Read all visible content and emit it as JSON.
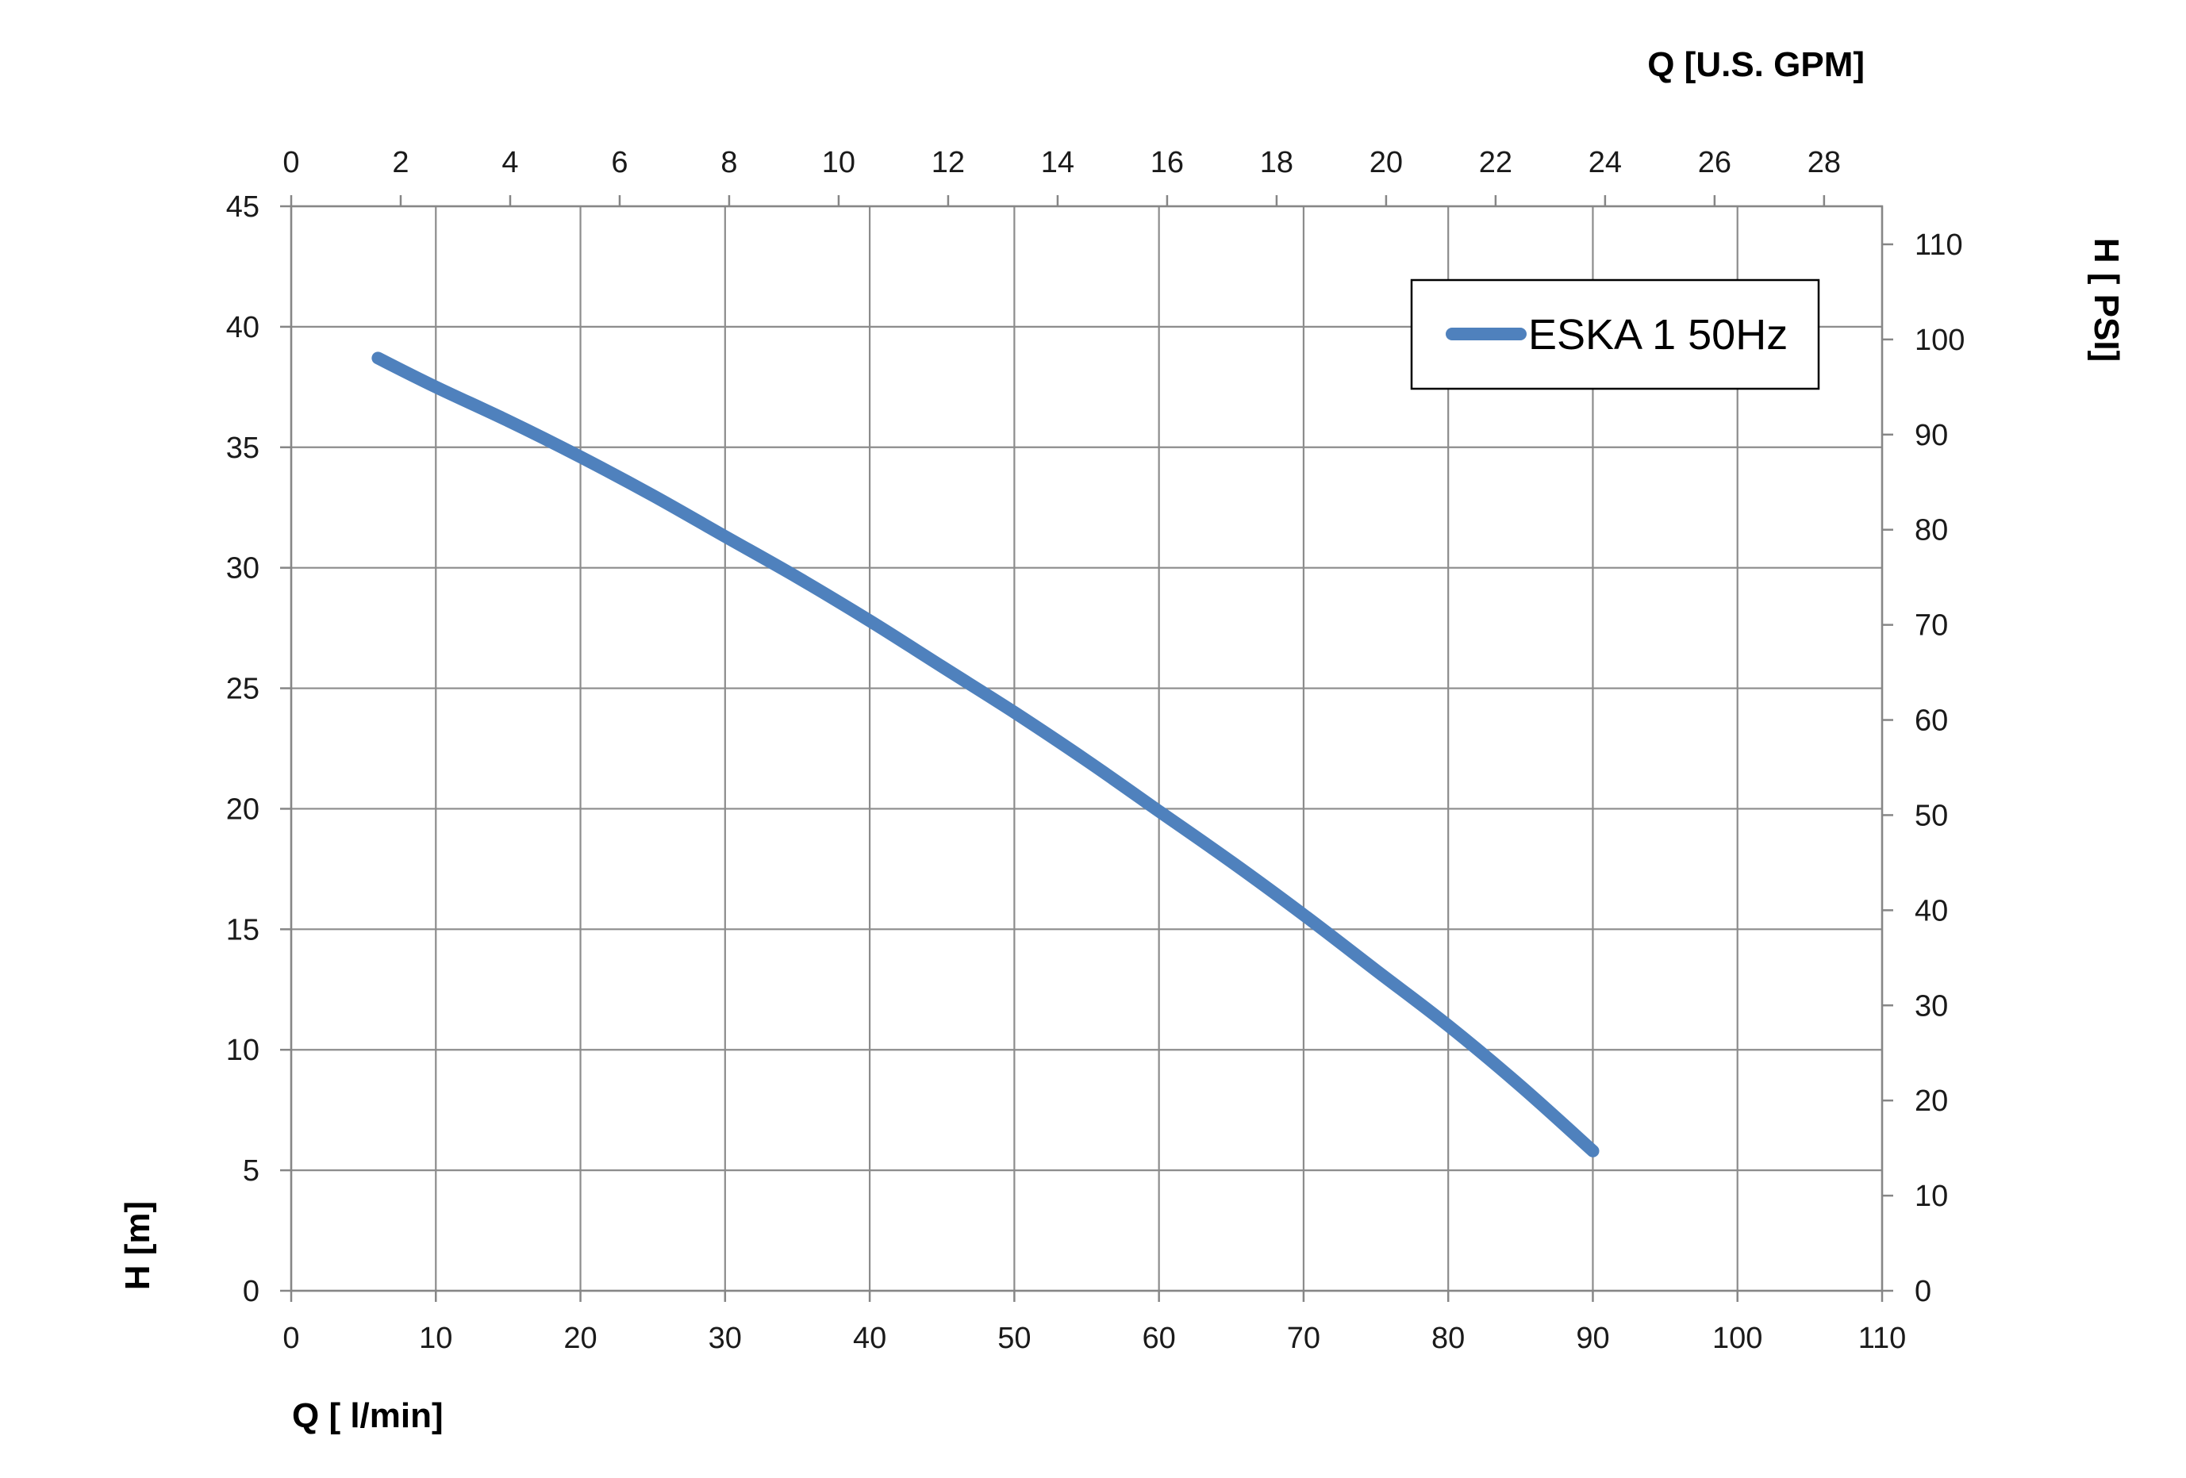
{
  "chart_data": {
    "type": "line",
    "x_axis_bottom": {
      "label": "Q [ l/min]",
      "range": [
        0,
        110
      ],
      "ticks": [
        "0",
        "10",
        "20",
        "30",
        "40",
        "50",
        "60",
        "70",
        "80",
        "90",
        "100",
        "110"
      ]
    },
    "x_axis_top": {
      "label": "Q  [U.S. GPM]",
      "range": [
        0,
        29.06
      ],
      "ticks": [
        "0",
        "2",
        "4",
        "6",
        "8",
        "10",
        "12",
        "14",
        "16",
        "18",
        "20",
        "22",
        "24",
        "26",
        "28"
      ]
    },
    "y_axis_left": {
      "label": "H [m]",
      "range": [
        0,
        45
      ],
      "ticks": [
        "0",
        "5",
        "10",
        "15",
        "20",
        "25",
        "30",
        "35",
        "40",
        "45"
      ]
    },
    "y_axis_right": {
      "label": "H [ PSI]",
      "range": [
        0,
        114
      ],
      "ticks": [
        "0",
        "10",
        "20",
        "30",
        "40",
        "50",
        "60",
        "70",
        "80",
        "90",
        "100",
        "110"
      ]
    },
    "grid": true,
    "legend_position": "top-right",
    "series": [
      {
        "name": "ESKA 1 50Hz",
        "color": "#4f81bd",
        "x": [
          6,
          10,
          15,
          20,
          25,
          30,
          35,
          40,
          45,
          50,
          55,
          60,
          65,
          70,
          75,
          80,
          85,
          90
        ],
        "y": [
          38.7,
          37.5,
          36.1,
          34.6,
          33.0,
          31.3,
          29.6,
          27.8,
          25.9,
          24.0,
          22.0,
          19.9,
          17.8,
          15.6,
          13.3,
          11.0,
          8.5,
          5.8
        ]
      }
    ]
  }
}
